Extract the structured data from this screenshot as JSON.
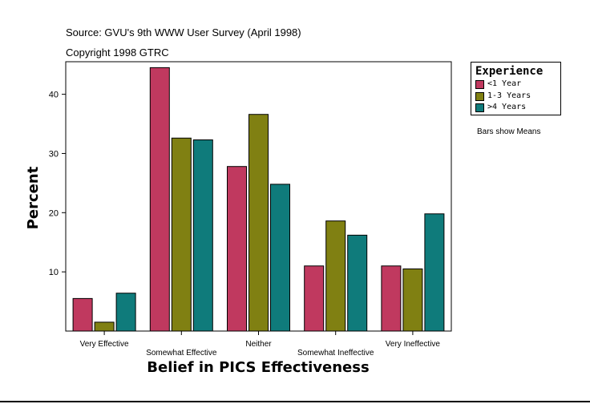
{
  "source": "Source: GVU's 9th WWW User Survey (April 1998)",
  "copyright": "Copyright 1998 GTRC",
  "note": "Bars show Means",
  "colors": {
    "lt1": "#c0395f",
    "y1to3": "#808012",
    "gt4": "#0f7b7b"
  },
  "chart_data": {
    "type": "bar",
    "title": "Source: GVU's 9th WWW User Survey (April 1998)",
    "xlabel": "Belief in PICS Effectiveness",
    "ylabel": "Percent",
    "ylim": [
      0,
      45.5
    ],
    "yticks": [
      10,
      20,
      30,
      40
    ],
    "categories": [
      "Very Effective",
      "Somewhat Effective",
      "Neither",
      "Somewhat Ineffective",
      "Very Ineffective"
    ],
    "legend_title": "Experience",
    "legend_position": "top-right",
    "series": [
      {
        "name": "<1 Year",
        "values": [
          5.5,
          44.5,
          27.8,
          11.0,
          11.0
        ]
      },
      {
        "name": "1-3 Years",
        "values": [
          1.5,
          32.6,
          36.6,
          18.6,
          10.5
        ]
      },
      {
        "name": ">4 Years",
        "values": [
          6.4,
          32.3,
          24.8,
          16.2,
          19.8
        ]
      }
    ]
  }
}
